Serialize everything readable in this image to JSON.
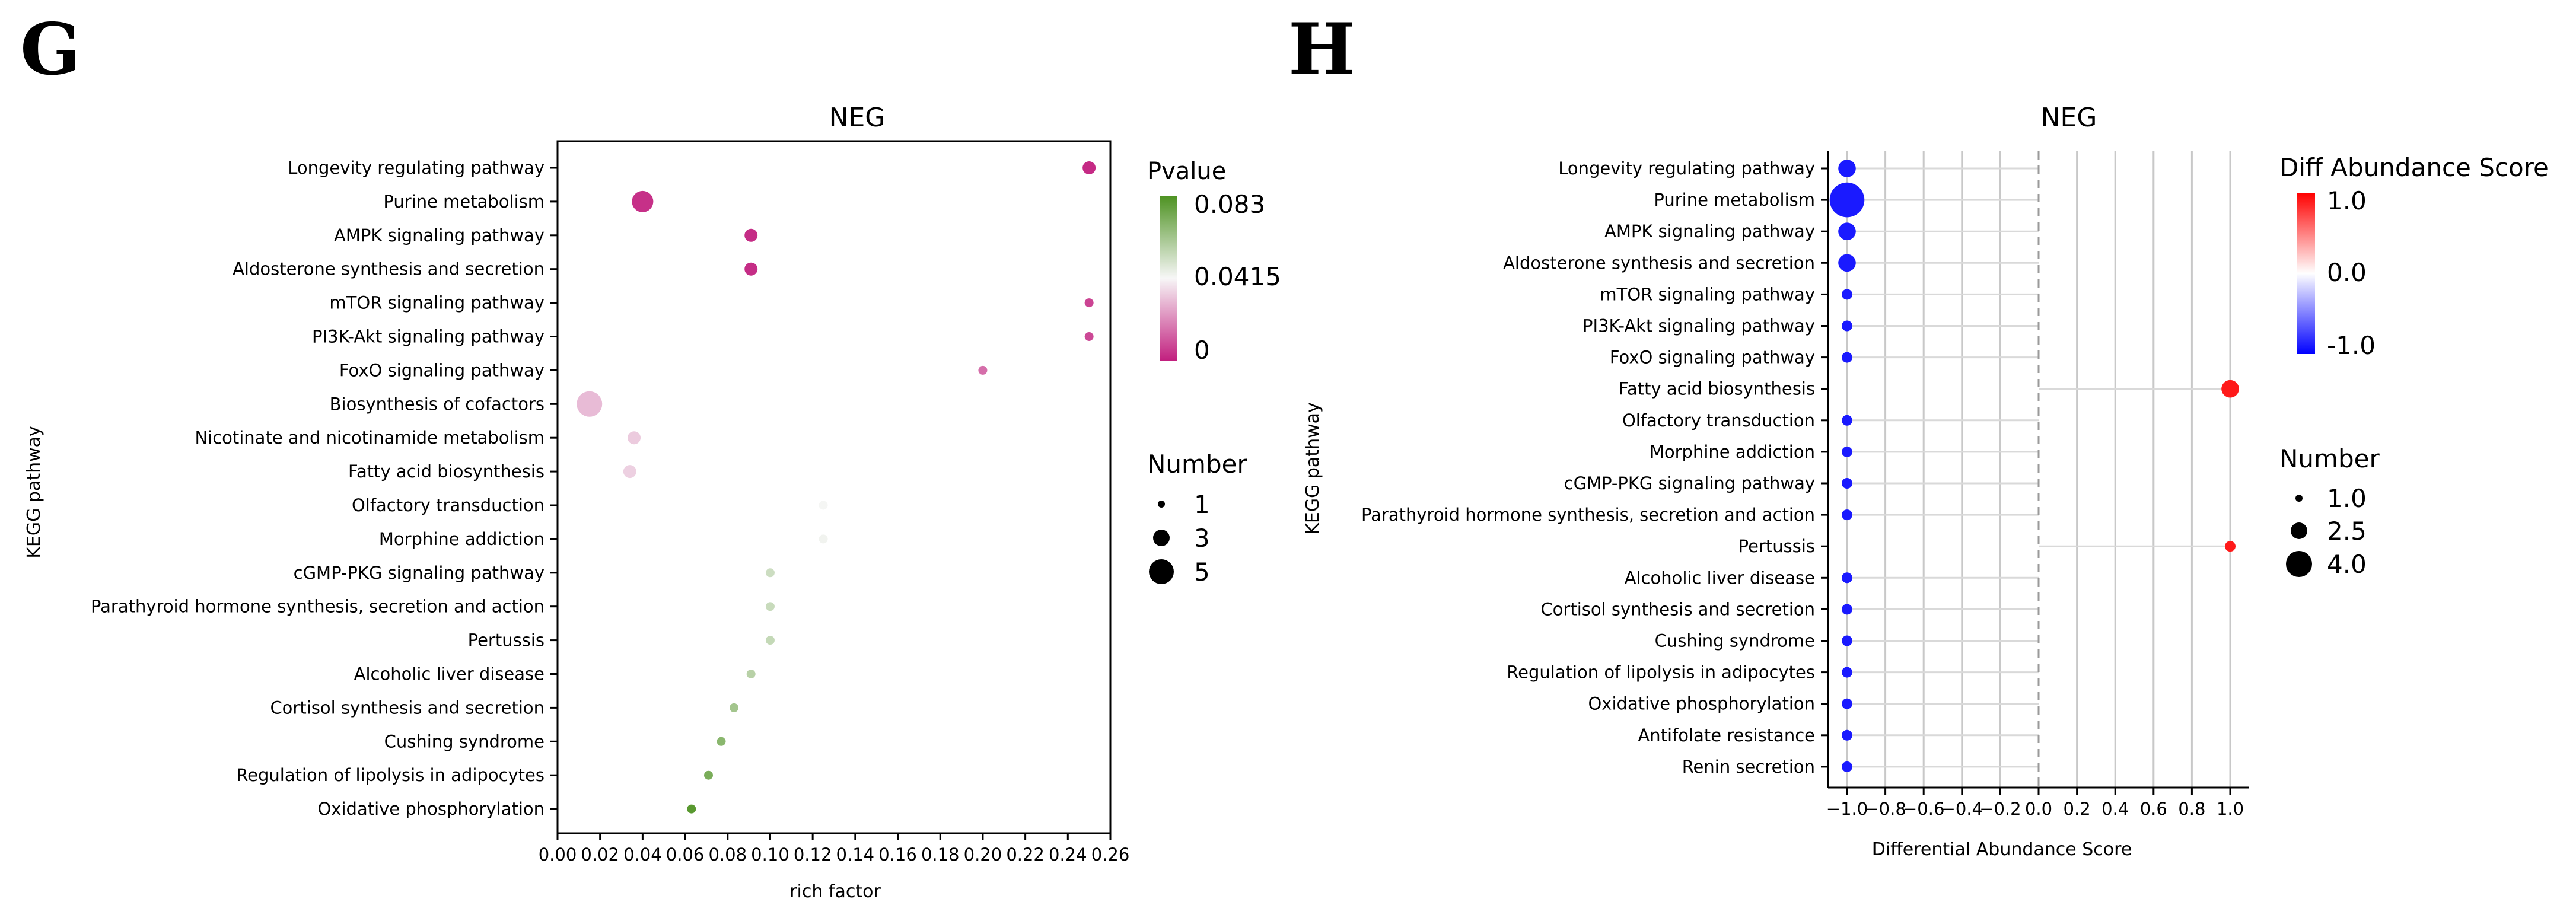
{
  "colors": {
    "bubble_low": "#c2207f",
    "bubble_mid": "#f7f7f7",
    "bubble_high": "#4d9221",
    "neg": "#1a1aff",
    "pos": "#ff1a1a",
    "frame": "#000000",
    "grid": "#c8c8c8"
  },
  "chart_data": [
    {
      "panel": "G",
      "type": "scatter",
      "title": "NEG",
      "xlabel": "rich factor",
      "ylabel": "KEGG pathway",
      "xlim": [
        0.0,
        0.26
      ],
      "xticks": [
        "0.00",
        "0.02",
        "0.04",
        "0.06",
        "0.08",
        "0.10",
        "0.12",
        "0.14",
        "0.16",
        "0.18",
        "0.20",
        "0.22",
        "0.24",
        "0.26"
      ],
      "categories": [
        "Longevity regulating pathway",
        "Purine metabolism",
        "AMPK signaling pathway",
        "Aldosterone synthesis and secretion",
        "mTOR signaling pathway",
        "PI3K-Akt signaling pathway",
        "FoxO signaling pathway",
        "Biosynthesis of cofactors",
        "Nicotinate and nicotinamide metabolism",
        "Fatty acid biosynthesis",
        "Olfactory transduction",
        "Morphine addiction",
        "cGMP-PKG signaling pathway",
        "Parathyroid hormone synthesis, secretion and action",
        "Pertussis",
        "Alcoholic liver disease",
        "Cortisol synthesis and secretion",
        "Cushing syndrome",
        "Regulation of lipolysis in adipocytes",
        "Oxidative phosphorylation"
      ],
      "x": [
        0.25,
        0.04,
        0.091,
        0.091,
        0.25,
        0.25,
        0.2,
        0.015,
        0.036,
        0.034,
        0.125,
        0.125,
        0.1,
        0.1,
        0.1,
        0.091,
        0.083,
        0.077,
        0.071,
        0.063
      ],
      "number": [
        2,
        4,
        2,
        2,
        1,
        1,
        1,
        5,
        2,
        2,
        1,
        1,
        1,
        1,
        1,
        1,
        1,
        1,
        1,
        1
      ],
      "pvalue": [
        0.002,
        0.003,
        0.0025,
        0.0025,
        0.007,
        0.008,
        0.015,
        0.03,
        0.033,
        0.034,
        0.042,
        0.043,
        0.052,
        0.053,
        0.054,
        0.057,
        0.062,
        0.068,
        0.072,
        0.08
      ],
      "legend_color": {
        "title": "Pvalue",
        "labels": [
          "0.083",
          "0.0415",
          "0"
        ],
        "min": 0,
        "max": 0.083
      },
      "legend_size": {
        "title": "Number",
        "labels": [
          "1",
          "3",
          "5"
        ],
        "values": [
          1,
          3,
          5
        ]
      }
    },
    {
      "panel": "H",
      "type": "scatter",
      "title": "NEG",
      "xlabel": "Differential Abundance Score",
      "ylabel": "KEGG pathway",
      "xlim": [
        -1.1,
        1.1
      ],
      "xticks": [
        "−1.0",
        "−0.8",
        "−0.6",
        "−0.4",
        "−0.2",
        "0.0",
        "0.2",
        "0.4",
        "0.6",
        "0.8",
        "1.0"
      ],
      "categories": [
        "Longevity regulating pathway",
        "Purine metabolism",
        "AMPK signaling pathway",
        "Aldosterone synthesis and secretion",
        "mTOR signaling pathway",
        "PI3K-Akt signaling pathway",
        "FoxO signaling pathway",
        "Fatty acid biosynthesis",
        "Olfactory transduction",
        "Morphine addiction",
        "cGMP-PKG signaling pathway",
        "Parathyroid hormone synthesis, secretion and action",
        "Pertussis",
        "Alcoholic liver disease",
        "Cortisol synthesis and secretion",
        "Cushing syndrome",
        "Regulation of lipolysis in adipocytes",
        "Oxidative phosphorylation",
        "Antifolate resistance",
        "Renin secretion"
      ],
      "x": [
        -1,
        -1,
        -1,
        -1,
        -1,
        -1,
        -1,
        1,
        -1,
        -1,
        -1,
        -1,
        1,
        -1,
        -1,
        -1,
        -1,
        -1,
        -1,
        -1
      ],
      "number": [
        2,
        4.5,
        2,
        2,
        1,
        1,
        1,
        2,
        1,
        1,
        1,
        1,
        1,
        1,
        1,
        1,
        1,
        1,
        1,
        1
      ],
      "score": [
        -1,
        -1,
        -1,
        -1,
        -1,
        -1,
        -1,
        1,
        -1,
        -1,
        -1,
        -1,
        1,
        -1,
        -1,
        -1,
        -1,
        -1,
        -1,
        -1
      ],
      "legend_color": {
        "title": "Diff Abundance Score",
        "labels": [
          "1.0",
          "0.0",
          "-1.0"
        ],
        "min": -1,
        "max": 1
      },
      "legend_size": {
        "title": "Number",
        "labels": [
          "1.0",
          "2.5",
          "4.0"
        ],
        "values": [
          1,
          2.5,
          4
        ]
      }
    }
  ],
  "panel_letters": [
    "G",
    "H"
  ]
}
